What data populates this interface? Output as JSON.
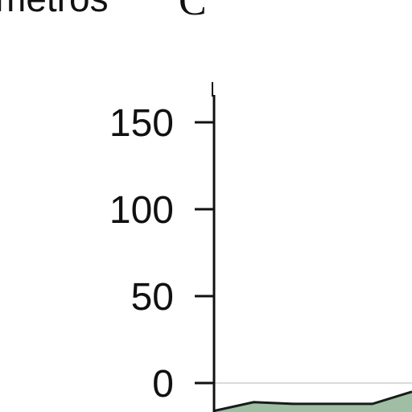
{
  "header": {
    "text": "metros",
    "panel_letter": "C"
  },
  "colors": {
    "axis": "#111111",
    "area_fill": "#9fbea4",
    "area_stroke": "#1a1a1a",
    "zero_line": "#cfcfcf"
  },
  "chart_data": {
    "type": "area",
    "yticks": [
      150,
      100,
      50,
      0
    ],
    "ylim": [
      -20,
      170
    ],
    "x": [
      0,
      1,
      2,
      3,
      4,
      5
    ],
    "values": [
      -16,
      -11,
      -12,
      -12,
      -12,
      -5
    ]
  }
}
